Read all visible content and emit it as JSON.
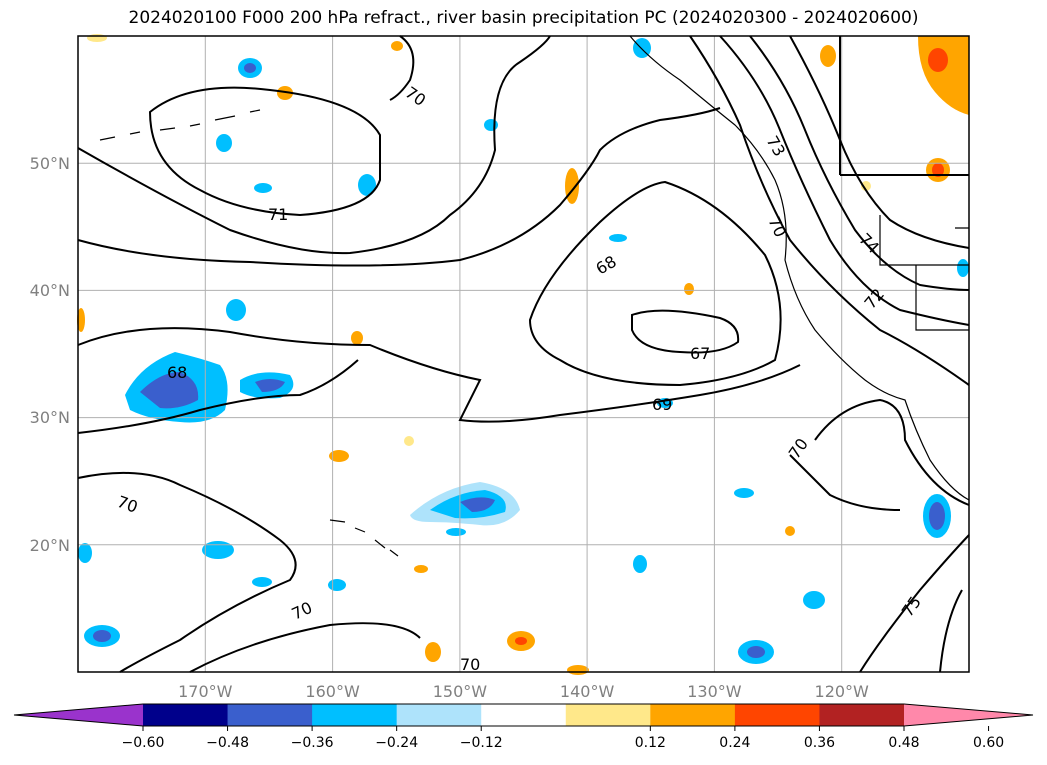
{
  "title": "2024020100 F000 200 hPa refract., river basin precipitation PC (2024020300 - 2024020600)",
  "map": {
    "lon_range": [
      -180,
      -110
    ],
    "lat_range": [
      10,
      60
    ],
    "lon_ticks": [
      "170°W",
      "160°W",
      "150°W",
      "140°W",
      "130°W",
      "120°W"
    ],
    "lat_ticks": [
      "50°N",
      "40°N",
      "30°N",
      "20°N"
    ],
    "gridlines": true,
    "contour_labels": [
      "70",
      "71",
      "68",
      "67",
      "69",
      "73",
      "70",
      "74",
      "72",
      "68",
      "70",
      "70",
      "70",
      "70",
      "75"
    ]
  },
  "colorbar": {
    "ticks": [
      "−0.60",
      "−0.48",
      "−0.36",
      "−0.24",
      "−0.12",
      "0.12",
      "0.24",
      "0.36",
      "0.48",
      "0.60"
    ],
    "colors": [
      "#9a33cc",
      "#00008b",
      "#3a5fcd",
      "#00bfff",
      "#aee3fb",
      "#ffffff",
      "#ffe88a",
      "#ffa500",
      "#ff4500",
      "#b22222",
      "#ff88aa"
    ],
    "extend": "both"
  }
}
